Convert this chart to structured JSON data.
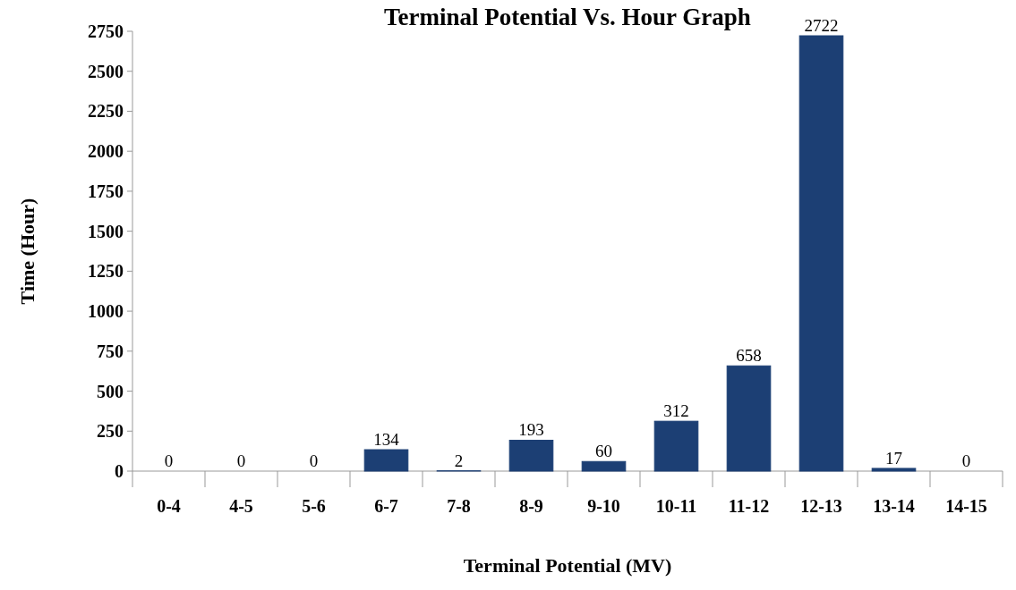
{
  "chart_data": {
    "type": "bar",
    "title": "Terminal Potential Vs. Hour Graph",
    "xlabel": "Terminal Potential (MV)",
    "ylabel": "Time (Hour)",
    "categories": [
      "0-4",
      "4-5",
      "5-6",
      "6-7",
      "7-8",
      "8-9",
      "9-10",
      "10-11",
      "11-12",
      "12-13",
      "13-14",
      "14-15"
    ],
    "values": [
      0,
      0,
      0,
      134,
      2,
      193,
      60,
      312,
      658,
      2722,
      17,
      0
    ],
    "color": "#1c3f74",
    "ylim": [
      0,
      2750
    ],
    "yticks": [
      0,
      250,
      500,
      750,
      1000,
      1250,
      1500,
      1750,
      2000,
      2250,
      2500,
      2750
    ],
    "grid": false,
    "data_labels": true
  }
}
